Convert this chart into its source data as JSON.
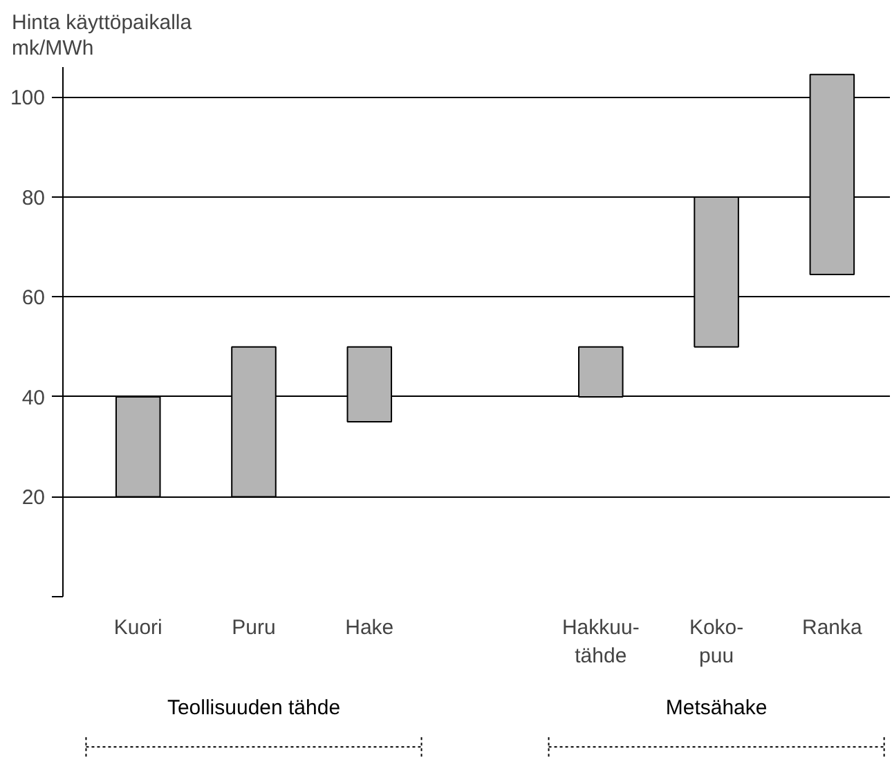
{
  "chart_data": {
    "type": "bar",
    "ylabel": "Hinta käyttöpaikalla\nmk/MWh",
    "categories": [
      "Kuori",
      "Puru",
      "Hake",
      null,
      "Hakkuu-\ntähde",
      "Koko-\npuu",
      "Ranka"
    ],
    "base": [
      20,
      20,
      35,
      null,
      40,
      50,
      64.5
    ],
    "values": [
      20,
      30,
      15,
      null,
      10,
      30,
      40
    ],
    "color": "#b4b4b4",
    "ylim": [
      0,
      106
    ],
    "yticks": [
      {
        "value": 0,
        "label": null
      },
      20,
      40,
      60,
      80,
      100
    ],
    "grid": "y",
    "annotations": [
      "Teollisuuden tähde",
      "Metsähake"
    ]
  }
}
